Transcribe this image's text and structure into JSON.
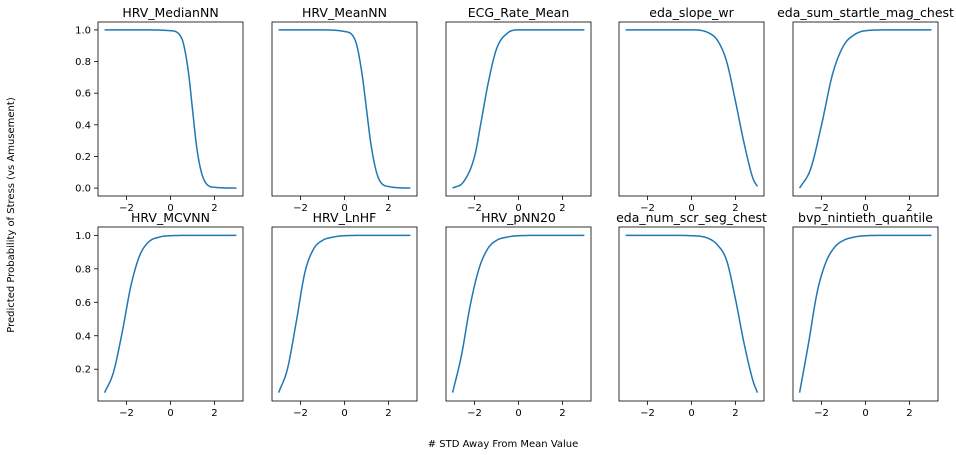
{
  "figure": {
    "ylabel": "Predicted Probability of Stress (vs Amusement)",
    "xlabel": "# STD Away From Mean Value",
    "line_color": "#1f77b4"
  },
  "chart_data": [
    {
      "type": "line",
      "title": "HRV_MedianNN",
      "xlim": [
        -3.3,
        3.3
      ],
      "ylim": [
        -0.05,
        1.05
      ],
      "xticks": [
        -2,
        0,
        2
      ],
      "xtick_labels": [
        "−2",
        "0",
        "2"
      ],
      "yticks": [
        0,
        0.2,
        0.4,
        0.6,
        0.8,
        1.0
      ],
      "ytick_labels": [
        "0.0",
        "0.2",
        "0.4",
        "0.6",
        "0.8",
        "1.0"
      ],
      "x": [
        -3,
        -2,
        -1,
        0,
        0.5,
        0.8,
        1.0,
        1.2,
        1.5,
        2,
        3
      ],
      "y": [
        1.0,
        1.0,
        1.0,
        0.995,
        0.95,
        0.75,
        0.5,
        0.25,
        0.06,
        0.005,
        0.0
      ]
    },
    {
      "type": "line",
      "title": "HRV_MeanNN",
      "xlim": [
        -3.3,
        3.3
      ],
      "ylim": [
        -0.05,
        1.05
      ],
      "xticks": [
        -2,
        0,
        2
      ],
      "xtick_labels": [
        "−2",
        "0",
        "2"
      ],
      "yticks": [],
      "ytick_labels": [],
      "x": [
        -3,
        -2,
        -1,
        0,
        0.5,
        0.8,
        1.0,
        1.2,
        1.5,
        2,
        3
      ],
      "y": [
        1.0,
        1.0,
        1.0,
        0.99,
        0.93,
        0.72,
        0.5,
        0.28,
        0.08,
        0.01,
        0.0
      ]
    },
    {
      "type": "line",
      "title": "ECG_Rate_Mean",
      "xlim": [
        -3.3,
        3.3
      ],
      "ylim": [
        -0.05,
        1.05
      ],
      "xticks": [
        -2,
        0,
        2
      ],
      "xtick_labels": [
        "−2",
        "0",
        "2"
      ],
      "yticks": [],
      "ytick_labels": [],
      "x": [
        -3,
        -2.5,
        -2,
        -1.7,
        -1.4,
        -1,
        -0.5,
        0,
        1,
        2,
        3
      ],
      "y": [
        0.0,
        0.04,
        0.2,
        0.42,
        0.65,
        0.88,
        0.98,
        1.0,
        1.0,
        1.0,
        1.0
      ]
    },
    {
      "type": "line",
      "title": "eda_slope_wr",
      "xlim": [
        -3.3,
        3.3
      ],
      "ylim": [
        -0.05,
        1.05
      ],
      "xticks": [
        -2,
        0,
        2
      ],
      "xtick_labels": [
        "−2",
        "0",
        "2"
      ],
      "yticks": [],
      "ytick_labels": [],
      "x": [
        -3,
        -1,
        0,
        0.8,
        1.2,
        1.6,
        2.0,
        2.4,
        2.8,
        3
      ],
      "y": [
        1.0,
        1.0,
        1.0,
        0.98,
        0.93,
        0.8,
        0.55,
        0.28,
        0.06,
        0.01
      ]
    },
    {
      "type": "line",
      "title": "eda_sum_startle_mag_chest",
      "xlim": [
        -3.3,
        3.3
      ],
      "ylim": [
        -0.05,
        1.05
      ],
      "xticks": [
        -2,
        0,
        2
      ],
      "xtick_labels": [
        "−2",
        "0",
        "2"
      ],
      "yticks": [],
      "ytick_labels": [],
      "x": [
        -3,
        -2.5,
        -2,
        -1.5,
        -1,
        -0.5,
        0,
        1,
        2,
        3
      ],
      "y": [
        0.0,
        0.12,
        0.4,
        0.72,
        0.9,
        0.97,
        0.995,
        1.0,
        1.0,
        1.0
      ]
    },
    {
      "type": "line",
      "title": "HRV_MCVNN",
      "xlim": [
        -3.3,
        3.3
      ],
      "ylim": [
        0.01,
        1.05
      ],
      "xticks": [
        -2,
        0,
        2
      ],
      "xtick_labels": [
        "−2",
        "0",
        "2"
      ],
      "yticks": [
        0.2,
        0.4,
        0.6,
        0.8,
        1.0
      ],
      "ytick_labels": [
        "0.2",
        "0.4",
        "0.6",
        "0.8",
        "1.0"
      ],
      "x": [
        -3,
        -2.6,
        -2.2,
        -1.8,
        -1.4,
        -1,
        -0.5,
        0,
        1,
        2,
        3
      ],
      "y": [
        0.06,
        0.18,
        0.42,
        0.7,
        0.88,
        0.96,
        0.99,
        0.998,
        1.0,
        1.0,
        1.0
      ]
    },
    {
      "type": "line",
      "title": "HRV_LnHF",
      "xlim": [
        -3.3,
        3.3
      ],
      "ylim": [
        0.01,
        1.05
      ],
      "xticks": [
        -2,
        0,
        2
      ],
      "xtick_labels": [
        "−2",
        "0",
        "2"
      ],
      "yticks": [],
      "ytick_labels": [],
      "x": [
        -3,
        -2.6,
        -2.2,
        -1.8,
        -1.4,
        -1,
        -0.5,
        0,
        1,
        2,
        3
      ],
      "y": [
        0.06,
        0.2,
        0.48,
        0.78,
        0.92,
        0.97,
        0.99,
        0.998,
        1.0,
        1.0,
        1.0
      ]
    },
    {
      "type": "line",
      "title": "HRV_pNN20",
      "xlim": [
        -3.3,
        3.3
      ],
      "ylim": [
        0.01,
        1.05
      ],
      "xticks": [
        -2,
        0,
        2
      ],
      "xtick_labels": [
        "−2",
        "0",
        "2"
      ],
      "yticks": [],
      "ytick_labels": [],
      "x": [
        -3,
        -2.6,
        -2.2,
        -1.8,
        -1.4,
        -1,
        -0.5,
        0,
        1,
        2,
        3
      ],
      "y": [
        0.06,
        0.28,
        0.58,
        0.8,
        0.92,
        0.97,
        0.99,
        0.998,
        1.0,
        1.0,
        1.0
      ]
    },
    {
      "type": "line",
      "title": "eda_num_scr_seg_chest",
      "xlim": [
        -3.3,
        3.3
      ],
      "ylim": [
        0.01,
        1.05
      ],
      "xticks": [
        -2,
        0,
        2
      ],
      "xtick_labels": [
        "−2",
        "0",
        "2"
      ],
      "yticks": [],
      "ytick_labels": [],
      "x": [
        -3,
        -1,
        0,
        0.8,
        1.2,
        1.6,
        2.0,
        2.4,
        2.8,
        3
      ],
      "y": [
        1.0,
        1.0,
        0.998,
        0.98,
        0.94,
        0.85,
        0.62,
        0.35,
        0.13,
        0.06
      ]
    },
    {
      "type": "line",
      "title": "bvp_nintieth_quantile",
      "xlim": [
        -3.3,
        3.3
      ],
      "ylim": [
        0.01,
        1.05
      ],
      "xticks": [
        -2,
        0,
        2
      ],
      "xtick_labels": [
        "−2",
        "0",
        "2"
      ],
      "yticks": [],
      "ytick_labels": [],
      "x": [
        -3,
        -2.6,
        -2.2,
        -1.8,
        -1.4,
        -1,
        -0.5,
        0,
        1,
        2,
        3
      ],
      "y": [
        0.06,
        0.35,
        0.66,
        0.84,
        0.93,
        0.97,
        0.99,
        0.998,
        1.0,
        1.0,
        1.0
      ]
    }
  ]
}
